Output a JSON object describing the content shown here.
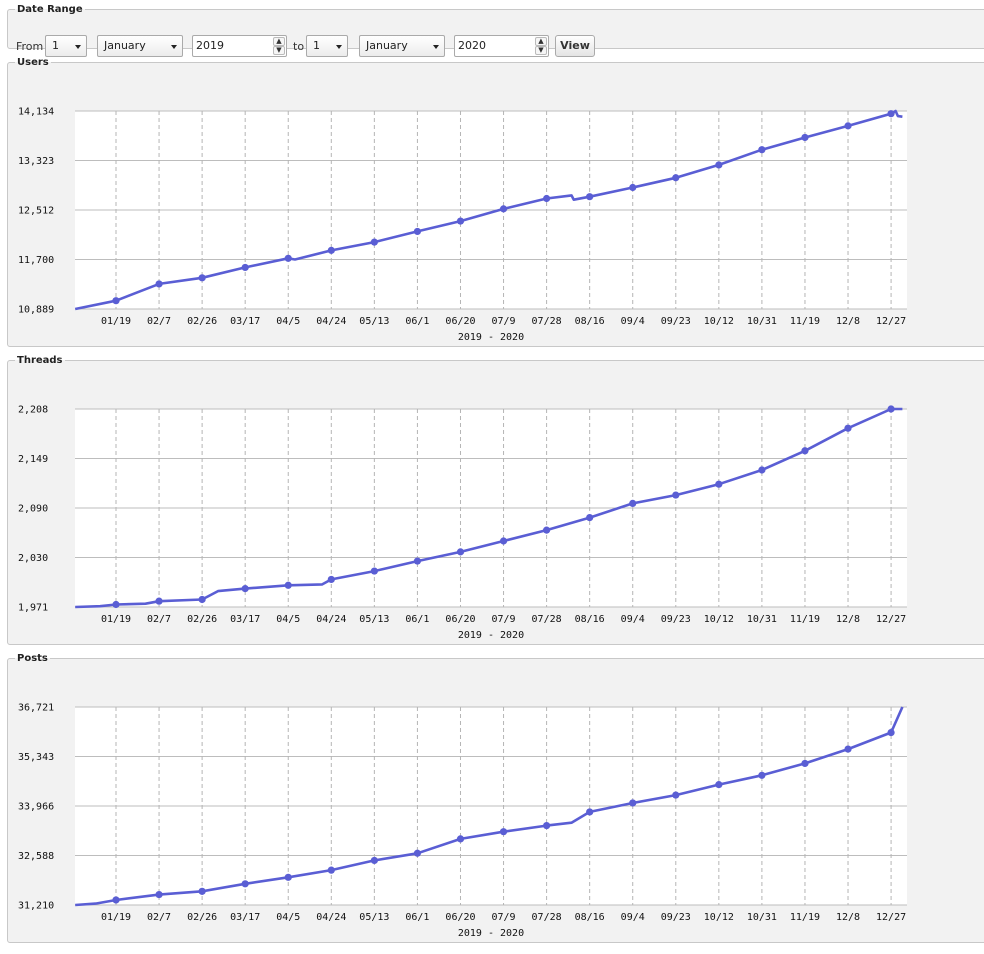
{
  "date_range": {
    "title": "Date Range",
    "from_label": "From",
    "from_day": "1",
    "from_month": "January",
    "from_year": "2019",
    "to_label": "to",
    "to_day": "1",
    "to_month": "January",
    "to_year": "2020",
    "view_label": "View"
  },
  "colors": {
    "series": "#5a5ed4",
    "panel_bg": "#f2f2f2",
    "grid": "#bdbdbd"
  },
  "chart_data": [
    {
      "type": "line",
      "title": "Users",
      "xlabel": "2019 - 2020",
      "ylabel": "",
      "x_ticks": [
        "01/19",
        "02/7",
        "02/26",
        "03/17",
        "04/5",
        "04/24",
        "05/13",
        "06/1",
        "06/20",
        "07/9",
        "07/28",
        "08/16",
        "09/4",
        "09/23",
        "10/12",
        "10/31",
        "11/19",
        "12/8",
        "12/27"
      ],
      "y_ticks": [
        "10,889",
        "11,700",
        "12,512",
        "13,323",
        "14,134"
      ],
      "ylim": [
        10889,
        14134
      ],
      "grid": true,
      "series": [
        {
          "x": [
            "2019-01-01",
            "2019-01-19",
            "2019-02-07",
            "2019-02-26",
            "2019-03-17",
            "2019-04-05",
            "2019-04-08",
            "2019-04-24",
            "2019-05-13",
            "2019-06-01",
            "2019-06-20",
            "2019-07-09",
            "2019-07-28",
            "2019-08-08",
            "2019-08-09",
            "2019-08-16",
            "2019-09-04",
            "2019-09-23",
            "2019-10-12",
            "2019-10-31",
            "2019-11-19",
            "2019-12-08",
            "2019-12-27",
            "2019-12-29",
            "2019-12-30",
            "2020-01-01"
          ],
          "y": [
            10889,
            11025,
            11300,
            11400,
            11570,
            11720,
            11700,
            11850,
            11985,
            12160,
            12330,
            12530,
            12700,
            12750,
            12680,
            12730,
            12880,
            13040,
            13250,
            13500,
            13700,
            13890,
            14090,
            14134,
            14050,
            14040
          ],
          "markers": [
            "2019-01-19",
            "2019-02-07",
            "2019-02-26",
            "2019-03-17",
            "2019-04-05",
            "2019-04-24",
            "2019-05-13",
            "2019-06-01",
            "2019-06-20",
            "2019-07-09",
            "2019-07-28",
            "2019-08-16",
            "2019-09-04",
            "2019-09-23",
            "2019-10-12",
            "2019-10-31",
            "2019-11-19",
            "2019-12-08",
            "2019-12-27"
          ]
        }
      ]
    },
    {
      "type": "line",
      "title": "Threads",
      "xlabel": "2019 - 2020",
      "ylabel": "",
      "x_ticks": [
        "01/19",
        "02/7",
        "02/26",
        "03/17",
        "04/5",
        "04/24",
        "05/13",
        "06/1",
        "06/20",
        "07/9",
        "07/28",
        "08/16",
        "09/4",
        "09/23",
        "10/12",
        "10/31",
        "11/19",
        "12/8",
        "12/27"
      ],
      "y_ticks": [
        "1,971",
        "2,030",
        "2,090",
        "2,149",
        "2,208"
      ],
      "ylim": [
        1971,
        2208
      ],
      "grid": true,
      "series": [
        {
          "x": [
            "2019-01-01",
            "2019-01-12",
            "2019-01-19",
            "2019-02-01",
            "2019-02-07",
            "2019-02-26",
            "2019-03-05",
            "2019-03-17",
            "2019-04-05",
            "2019-04-20",
            "2019-04-24",
            "2019-05-13",
            "2019-06-01",
            "2019-06-20",
            "2019-07-09",
            "2019-07-28",
            "2019-08-16",
            "2019-09-04",
            "2019-09-23",
            "2019-10-12",
            "2019-10-31",
            "2019-11-19",
            "2019-12-08",
            "2019-12-27",
            "2020-01-01"
          ],
          "y": [
            1971,
            1972,
            1974,
            1975,
            1978,
            1980,
            1990,
            1993,
            1997,
            1998,
            2004,
            2014,
            2026,
            2037,
            2050,
            2063,
            2078,
            2095,
            2105,
            2118,
            2135,
            2158,
            2185,
            2208,
            2208
          ],
          "markers": [
            "2019-01-19",
            "2019-02-07",
            "2019-02-26",
            "2019-03-17",
            "2019-04-05",
            "2019-04-24",
            "2019-05-13",
            "2019-06-01",
            "2019-06-20",
            "2019-07-09",
            "2019-07-28",
            "2019-08-16",
            "2019-09-04",
            "2019-09-23",
            "2019-10-12",
            "2019-10-31",
            "2019-11-19",
            "2019-12-08",
            "2019-12-27"
          ]
        }
      ]
    },
    {
      "type": "line",
      "title": "Posts",
      "xlabel": "2019 - 2020",
      "ylabel": "",
      "x_ticks": [
        "01/19",
        "02/7",
        "02/26",
        "03/17",
        "04/5",
        "04/24",
        "05/13",
        "06/1",
        "06/20",
        "07/9",
        "07/28",
        "08/16",
        "09/4",
        "09/23",
        "10/12",
        "10/31",
        "11/19",
        "12/8",
        "12/27"
      ],
      "y_ticks": [
        "31,210",
        "32,588",
        "33,966",
        "35,343",
        "36,721"
      ],
      "ylim": [
        31210,
        36721
      ],
      "grid": true,
      "series": [
        {
          "x": [
            "2019-01-01",
            "2019-01-10",
            "2019-01-19",
            "2019-02-07",
            "2019-02-26",
            "2019-03-17",
            "2019-04-05",
            "2019-04-24",
            "2019-05-13",
            "2019-06-01",
            "2019-06-20",
            "2019-07-09",
            "2019-07-28",
            "2019-08-08",
            "2019-08-16",
            "2019-09-04",
            "2019-09-23",
            "2019-10-12",
            "2019-10-31",
            "2019-11-19",
            "2019-12-08",
            "2019-12-27",
            "2020-01-01"
          ],
          "y": [
            31210,
            31250,
            31350,
            31500,
            31590,
            31800,
            31980,
            32180,
            32450,
            32650,
            33050,
            33250,
            33420,
            33500,
            33800,
            34050,
            34270,
            34560,
            34820,
            35150,
            35550,
            36010,
            36721
          ],
          "markers": [
            "2019-01-19",
            "2019-02-07",
            "2019-02-26",
            "2019-03-17",
            "2019-04-05",
            "2019-04-24",
            "2019-05-13",
            "2019-06-01",
            "2019-06-20",
            "2019-07-09",
            "2019-07-28",
            "2019-08-16",
            "2019-09-04",
            "2019-09-23",
            "2019-10-12",
            "2019-10-31",
            "2019-11-19",
            "2019-12-08",
            "2019-12-27"
          ]
        }
      ]
    }
  ]
}
